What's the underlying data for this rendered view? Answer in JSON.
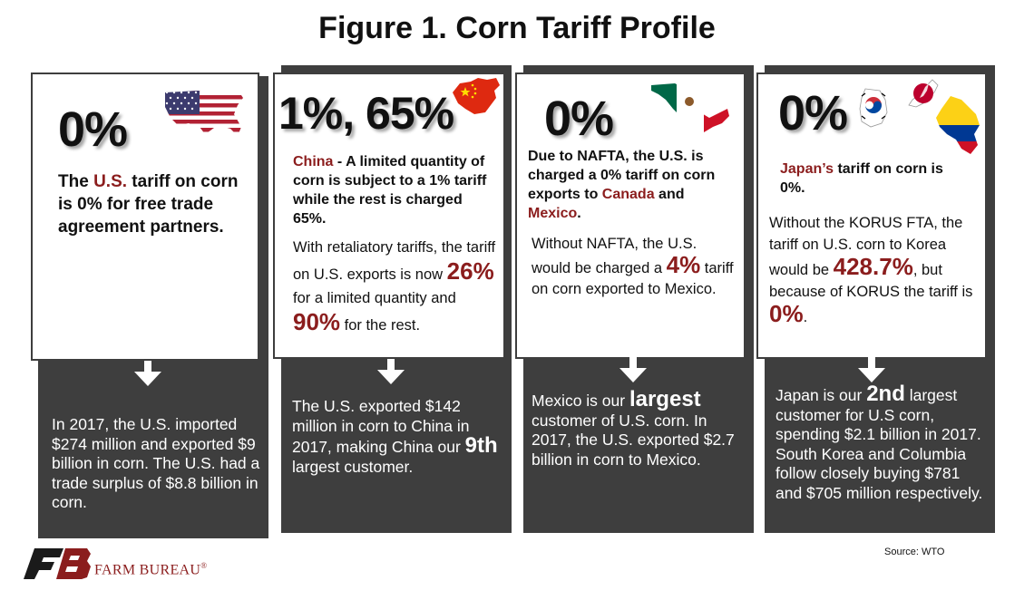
{
  "title": "Figure 1. Corn Tariff Profile",
  "source": "Source: WTO",
  "logo": {
    "name": "FARM BUREAU",
    "mark": "®"
  },
  "us": {
    "rate": "0%",
    "t1": "The ",
    "t2": "U.S.",
    "t3": " tariff on corn is 0% for free trade agreement partners.",
    "bottom": "In 2017, the U.S. imported $274 million and exported $9 billion in corn. The U.S. had a trade surplus of $8.8 billion in corn."
  },
  "china": {
    "rate": "1%, 65%",
    "t1": "China",
    "t2": " - A limited quantity of corn is subject to a 1% tariff while the rest is charged 65%.",
    "r1": "With retaliatory tariffs, the tariff on U.S. exports is now ",
    "r2": "26%",
    "r3": " for a limited quantity and ",
    "r4": "90%",
    "r5": " for the rest.",
    "b1": "The U.S. exported $142 million in corn to China in 2017, making China our ",
    "b2": "9th",
    "b3": " largest customer."
  },
  "mexico": {
    "rate": "0%",
    "t1": "Due to NAFTA, the U.S. is charged a 0% tariff on corn exports to ",
    "t2": "Canada",
    "t3": " and ",
    "t4": "Mexico",
    "t5": ".",
    "r1": "Without NAFTA, the U.S. would be charged a ",
    "r2": "4%",
    "r3": " tariff on corn exported to Mexico.",
    "b1": "Mexico is our ",
    "b2": "largest",
    "b3": " customer of U.S. corn. In 2017, the U.S. exported $2.7 billion in corn to Mexico."
  },
  "japan": {
    "rate": "0%",
    "t1": "Japan’s",
    "t2": " tariff on corn is 0%.",
    "r1": "Without the KORUS FTA, the tariff on U.S. corn to Korea would be ",
    "r2": "428.7%",
    "r3": ", but because of KORUS the tariff is ",
    "r4": "0%",
    "r5": ".",
    "b1": "Japan is our ",
    "b2": "2nd",
    "b3": " largest customer for U.S corn, spending $2.1 billion in 2017. South Korea and Columbia follow closely buying $781 and $705 million respectively."
  },
  "colors": {
    "panel": "#3e3e3e",
    "accent": "#8b1d1d"
  },
  "icons": [
    "us-flag-map-icon",
    "china-flag-map-icon",
    "mexico-flag-map-icon",
    "south-korea-flag-map-icon",
    "japan-flag-map-icon",
    "colombia-flag-map-icon",
    "down-arrow-icon",
    "farm-bureau-logo"
  ]
}
